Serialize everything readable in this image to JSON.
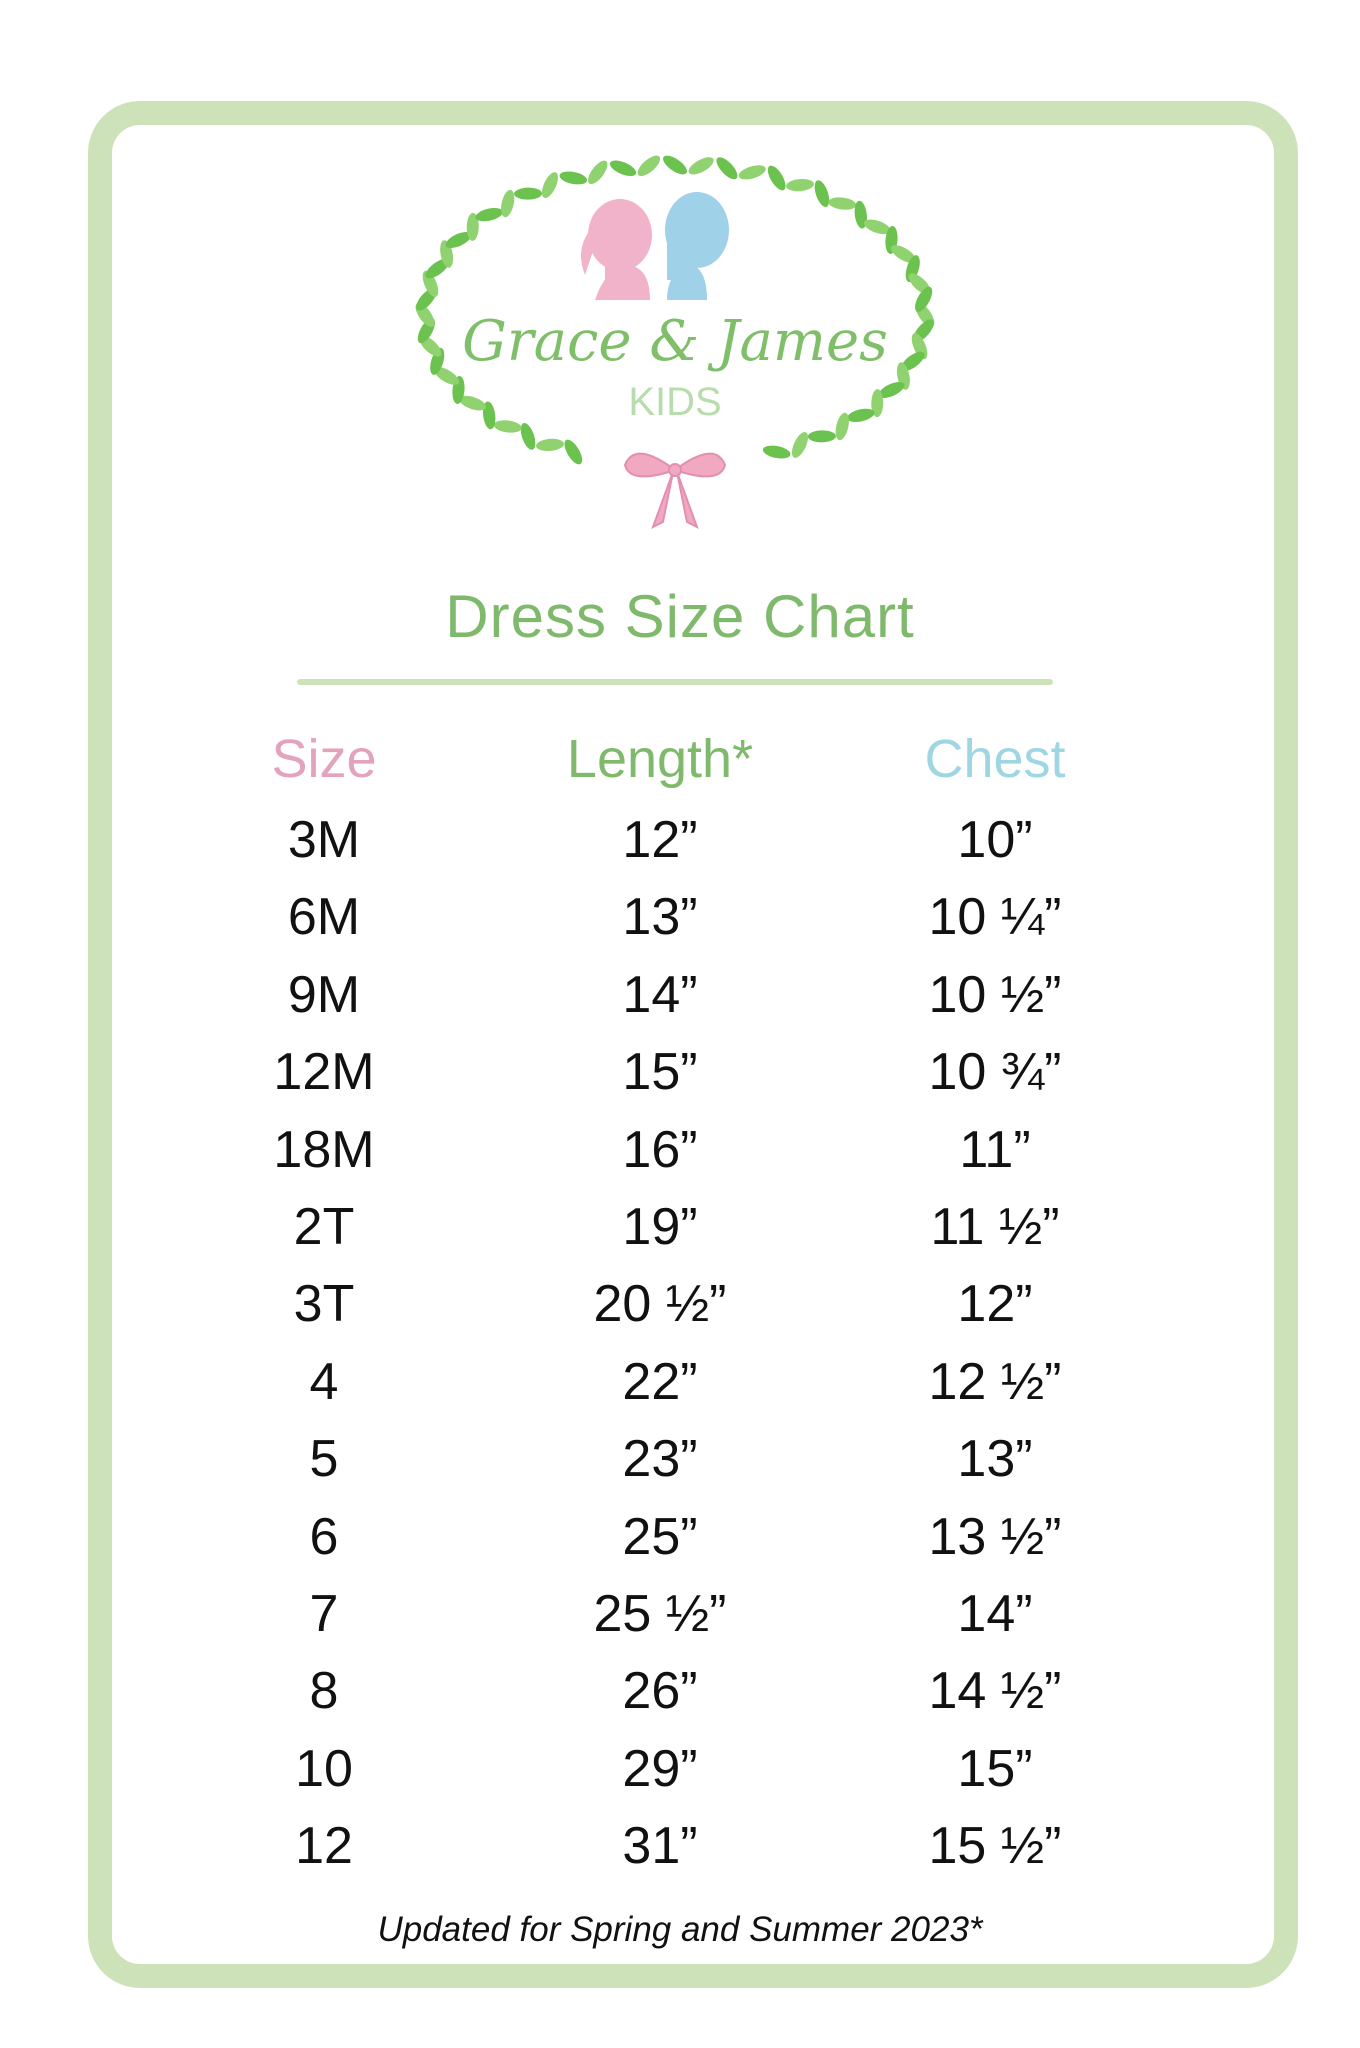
{
  "brand": {
    "name": "Grace & James",
    "sub": "KIDS"
  },
  "title": "Dress Size Chart",
  "colors": {
    "frame": "#cde2b8",
    "green": "#7fb96c",
    "pink": "#e3a3bd",
    "blue": "#9fd6e3"
  },
  "headers": {
    "size": "Size",
    "length": "Length*",
    "chest": "Chest"
  },
  "rows": [
    {
      "size": "3M",
      "length": "12”",
      "chest": "10”"
    },
    {
      "size": "6M",
      "length": "13”",
      "chest": "10 ¼”"
    },
    {
      "size": "9M",
      "length": "14”",
      "chest": "10 ½”"
    },
    {
      "size": "12M",
      "length": "15”",
      "chest": "10 ¾”"
    },
    {
      "size": "18M",
      "length": "16”",
      "chest": "11”"
    },
    {
      "size": "2T",
      "length": "19”",
      "chest": "11 ½”"
    },
    {
      "size": "3T",
      "length": "20 ½”",
      "chest": "12”"
    },
    {
      "size": "4",
      "length": "22”",
      "chest": "12 ½”"
    },
    {
      "size": "5",
      "length": "23”",
      "chest": "13”"
    },
    {
      "size": "6",
      "length": "25”",
      "chest": "13 ½”"
    },
    {
      "size": "7",
      "length": "25 ½”",
      "chest": "14”"
    },
    {
      "size": "8",
      "length": "26”",
      "chest": "14 ½”"
    },
    {
      "size": "10",
      "length": "29”",
      "chest": "15”"
    },
    {
      "size": "12",
      "length": "31”",
      "chest": "15 ½”"
    }
  ],
  "footer": "Updated for Spring and Summer 2023*"
}
